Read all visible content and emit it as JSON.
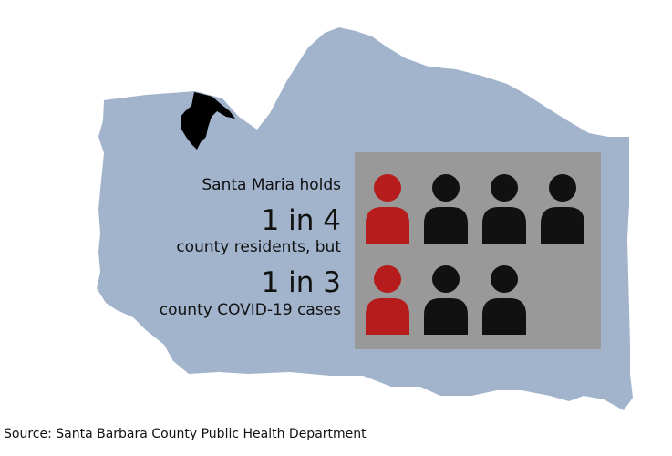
{
  "headline": {
    "line1": "Santa Maria holds",
    "line2": "1 in 4",
    "line3": "county residents, but",
    "line4": "1 in 3",
    "line5": "county COVID-19 cases"
  },
  "pictogram": {
    "row1": {
      "total": 4,
      "highlighted": 1
    },
    "row2": {
      "total": 3,
      "highlighted": 1
    },
    "highlight_color": "#b71c1c",
    "default_color": "#111111",
    "panel_color": "#999999"
  },
  "map": {
    "county_color": "#a2b4cc",
    "city_color": "#000000"
  },
  "source": "Source: Santa Barbara County Public Health Department"
}
